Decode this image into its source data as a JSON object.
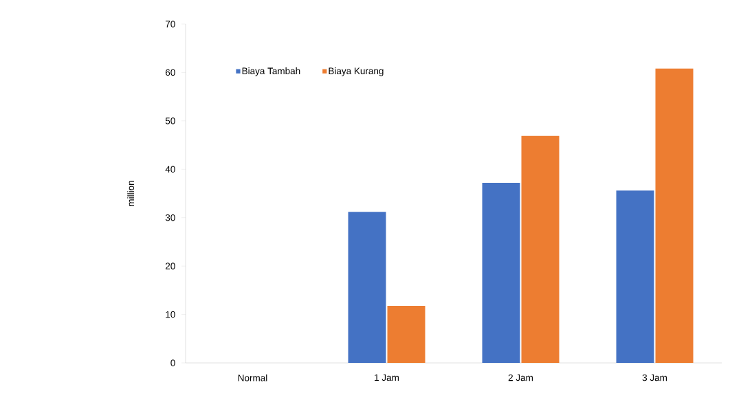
{
  "chart_data": {
    "type": "bar",
    "ylabel": "million",
    "categories": [
      "Normal",
      "1 Jam",
      "2 Jam",
      "3 Jam"
    ],
    "series": [
      {
        "name": "Biaya Tambah",
        "color": "#4472c4",
        "values": [
          0,
          31.2,
          37.2,
          35.6
        ]
      },
      {
        "name": "Biaya Kurang",
        "color": "#ed7d31",
        "values": [
          0,
          11.8,
          46.9,
          60.8
        ]
      }
    ],
    "ylim": [
      0,
      70
    ],
    "yticks": [
      0,
      10,
      20,
      30,
      40,
      50,
      60,
      70
    ],
    "grid": false,
    "legend": "top left"
  }
}
